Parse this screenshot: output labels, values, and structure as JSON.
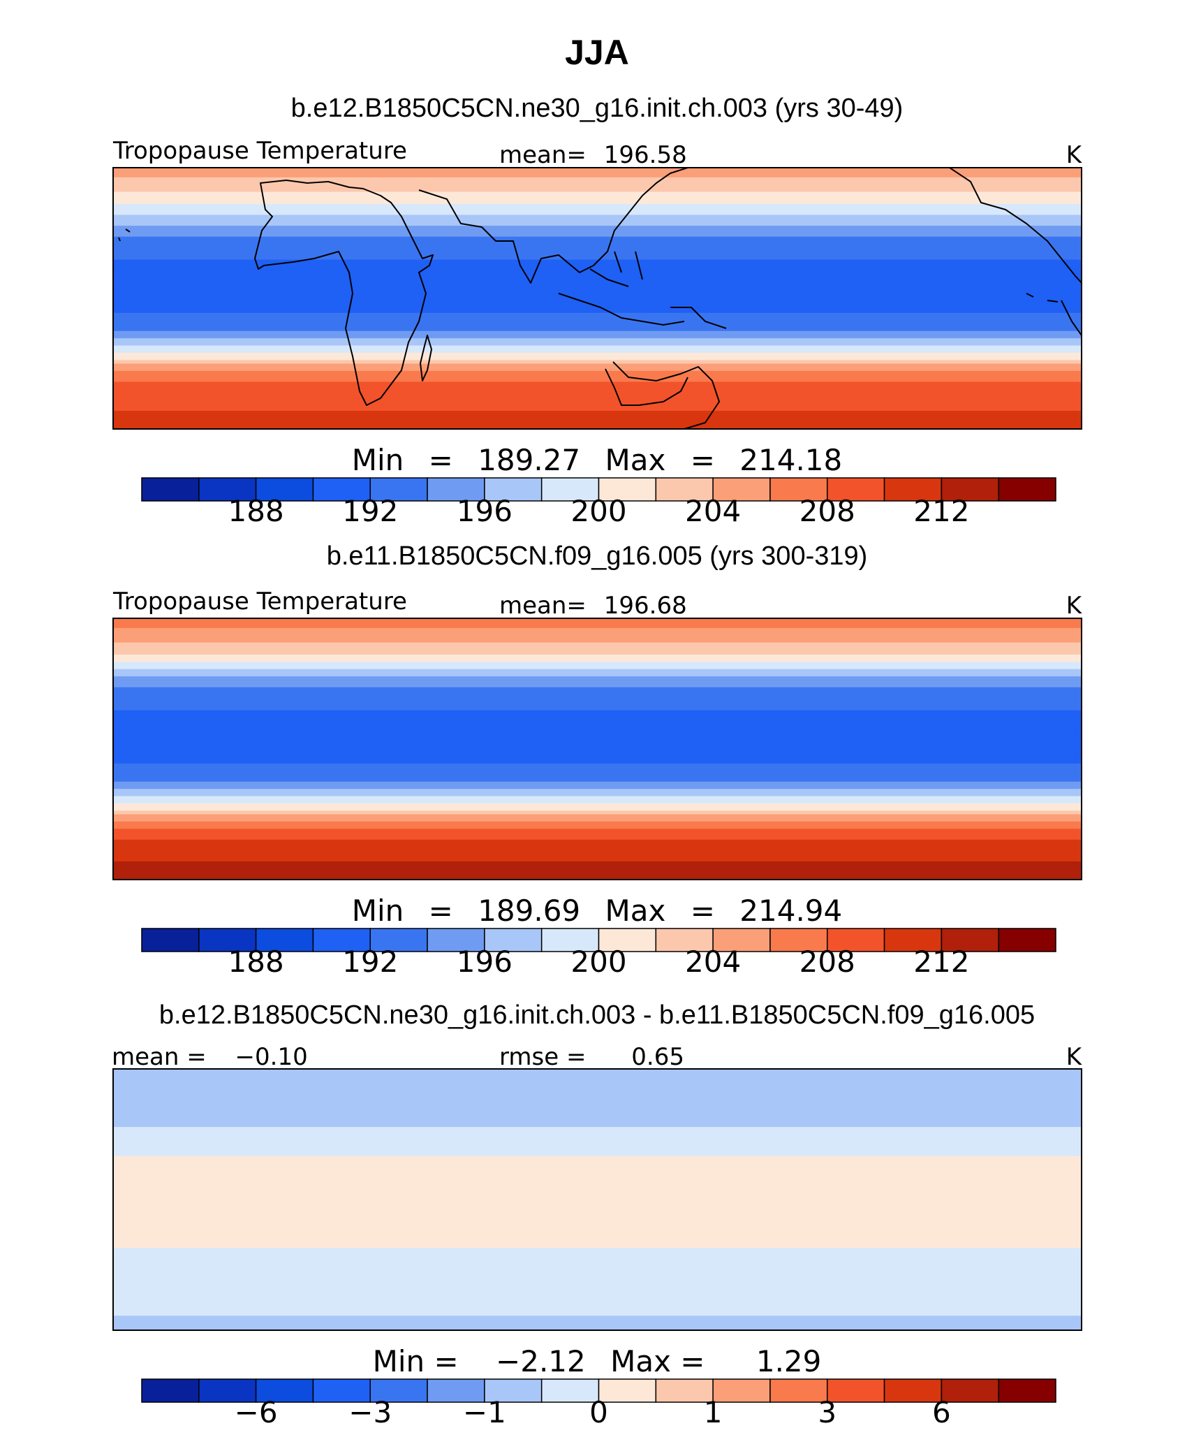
{
  "figure": {
    "title": "JJA"
  },
  "palette": {
    "abs": [
      "#08209a",
      "#0a35c2",
      "#0c4cdf",
      "#1f60f5",
      "#3a75f1",
      "#6f9bf2",
      "#a8c6f7",
      "#d8e8fb",
      "#fde8d8",
      "#fcc8ad",
      "#fb9f78",
      "#f97a4c",
      "#f2532a",
      "#d8360f",
      "#b0200a",
      "#860000"
    ],
    "diff": [
      "#08209a",
      "#0a35c2",
      "#0c4cdf",
      "#1f60f5",
      "#3a75f1",
      "#6f9bf2",
      "#a8c6f7",
      "#d8e8fb",
      "#fde8d8",
      "#fcc8ad",
      "#fb9f78",
      "#f97a4c",
      "#f2532a",
      "#d8360f",
      "#b0200a",
      "#860000"
    ]
  },
  "chart_data": [
    {
      "type": "heatmap",
      "subtitle": "b.e12.B1850C5CN.ne30_g16.init.ch.003 (yrs 30-49)",
      "left_label": "Tropopause Temperature",
      "center_label": "mean=",
      "center_value": "196.58",
      "units": "K",
      "minmax": {
        "min_label": "Min",
        "min": "189.27",
        "max_label": "Max",
        "max": "214.18"
      },
      "colorbar": {
        "ticks": [
          "188",
          "192",
          "196",
          "200",
          "204",
          "208",
          "212"
        ],
        "tick_boundaries": [
          2,
          4,
          6,
          8,
          10,
          12,
          14
        ],
        "n_bins": 16
      },
      "bands_by_latitude": [
        {
          "lat": 90,
          "bin": 10
        },
        {
          "lat": 70,
          "bin": 8
        },
        {
          "lat": 55,
          "bin": 6
        },
        {
          "lat": 40,
          "bin": 4
        },
        {
          "lat": 20,
          "bin": 3
        },
        {
          "lat": 0,
          "bin": 3
        },
        {
          "lat": -20,
          "bin": 4
        },
        {
          "lat": -35,
          "bin": 7
        },
        {
          "lat": -50,
          "bin": 11
        },
        {
          "lat": -65,
          "bin": 12
        },
        {
          "lat": -90,
          "bin": 13
        }
      ]
    },
    {
      "type": "heatmap",
      "subtitle": "b.e11.B1850C5CN.f09_g16.005 (yrs 300-319)",
      "left_label": "Tropopause Temperature",
      "center_label": "mean=",
      "center_value": "196.68",
      "units": "K",
      "minmax": {
        "min_label": "Min",
        "min": "189.69",
        "max_label": "Max",
        "max": "214.94"
      },
      "colorbar": {
        "ticks": [
          "188",
          "192",
          "196",
          "200",
          "204",
          "208",
          "212"
        ],
        "tick_boundaries": [
          2,
          4,
          6,
          8,
          10,
          12,
          14
        ],
        "n_bins": 16
      },
      "bands_by_latitude": [
        {
          "lat": 90,
          "bin": 11
        },
        {
          "lat": 70,
          "bin": 9
        },
        {
          "lat": 55,
          "bin": 6
        },
        {
          "lat": 40,
          "bin": 4
        },
        {
          "lat": 20,
          "bin": 3
        },
        {
          "lat": 0,
          "bin": 3
        },
        {
          "lat": -20,
          "bin": 4
        },
        {
          "lat": -35,
          "bin": 7
        },
        {
          "lat": -50,
          "bin": 11
        },
        {
          "lat": -65,
          "bin": 13
        },
        {
          "lat": -90,
          "bin": 14
        }
      ]
    },
    {
      "type": "heatmap",
      "subtitle": "b.e12.B1850C5CN.ne30_g16.init.ch.003 - b.e11.B1850C5CN.f09_g16.005",
      "left_label": "mean =",
      "left_value": "−0.10",
      "center_label": "rmse =",
      "center_value": "0.65",
      "units": "K",
      "minmax": {
        "min_label": "Min =",
        "min": "−2.12",
        "max_label": "Max =",
        "max": "1.29"
      },
      "colorbar": {
        "ticks": [
          "−6",
          "−3",
          "−1",
          "0",
          "1",
          "3",
          "6"
        ],
        "tick_boundaries": [
          2,
          4,
          6,
          8,
          10,
          12,
          14
        ],
        "n_bins": 16
      },
      "bands_by_latitude": [
        {
          "lat": 90,
          "bin": 6
        },
        {
          "lat": 60,
          "bin": 6
        },
        {
          "lat": 40,
          "bin": 7
        },
        {
          "lat": 20,
          "bin": 8
        },
        {
          "lat": 0,
          "bin": 8
        },
        {
          "lat": -20,
          "bin": 8
        },
        {
          "lat": -40,
          "bin": 7
        },
        {
          "lat": -60,
          "bin": 7
        },
        {
          "lat": -90,
          "bin": 6
        }
      ]
    }
  ]
}
